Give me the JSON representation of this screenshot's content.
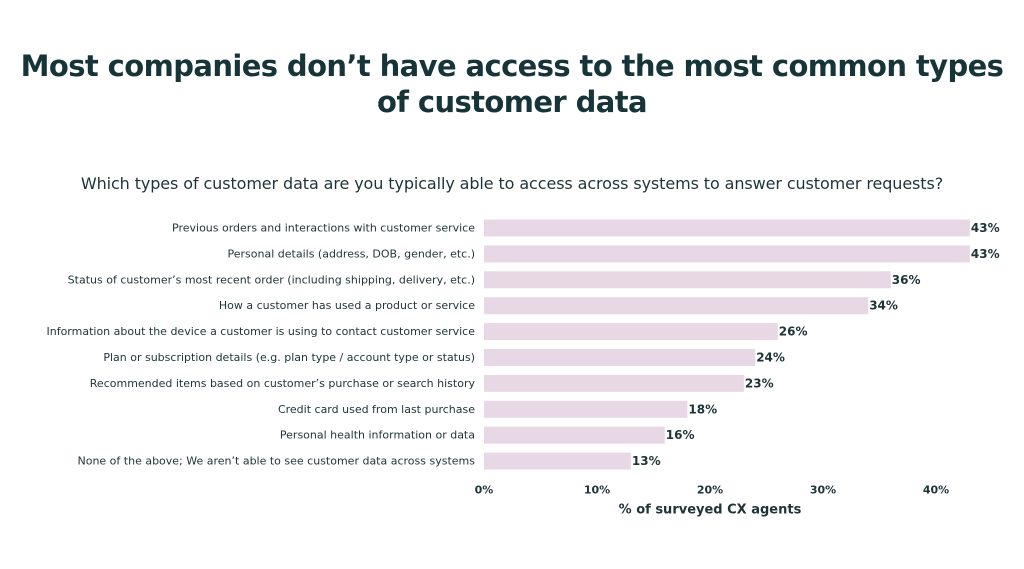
{
  "header": {
    "title_line1": "Most companies don’t have access to the most common types",
    "title_line2": "of customer data"
  },
  "question": "Which types of customer data are you typically able to access across systems to answer customer requests?",
  "colors": {
    "bar": "#e8d8e6",
    "text": "#1f3438",
    "title": "#173538"
  },
  "chart_data": {
    "type": "bar",
    "orientation": "horizontal",
    "title": "Which types of customer data are you typically able to access across systems to answer customer requests?",
    "categories": [
      "Previous orders and interactions with customer service",
      "Personal details (address, DOB, gender, etc.)",
      "Status of customer’s most recent order (including shipping, delivery, etc.)",
      "How a customer has used a product or service",
      "Information about the device a customer is using to contact customer service",
      "Plan or subscription details (e.g. plan type / account type or status)",
      "Recommended items based on customer’s purchase or search history",
      "Credit card used from last purchase",
      "Personal health information or data",
      "None of the above; We aren’t able to see customer data across systems"
    ],
    "values": [
      43,
      43,
      36,
      34,
      26,
      24,
      23,
      18,
      16,
      13
    ],
    "value_labels": [
      "43%",
      "43%",
      "36%",
      "34%",
      "26%",
      "24%",
      "23%",
      "18%",
      "16%",
      "13%"
    ],
    "xlabel": "% of surveyed CX agents",
    "ylabel": "",
    "xlim": [
      0,
      40
    ],
    "xticks": [
      0,
      10,
      20,
      30,
      40
    ],
    "xtick_labels": [
      "0%",
      "10%",
      "20%",
      "30%",
      "40%"
    ],
    "grid": false,
    "legend": "none"
  }
}
